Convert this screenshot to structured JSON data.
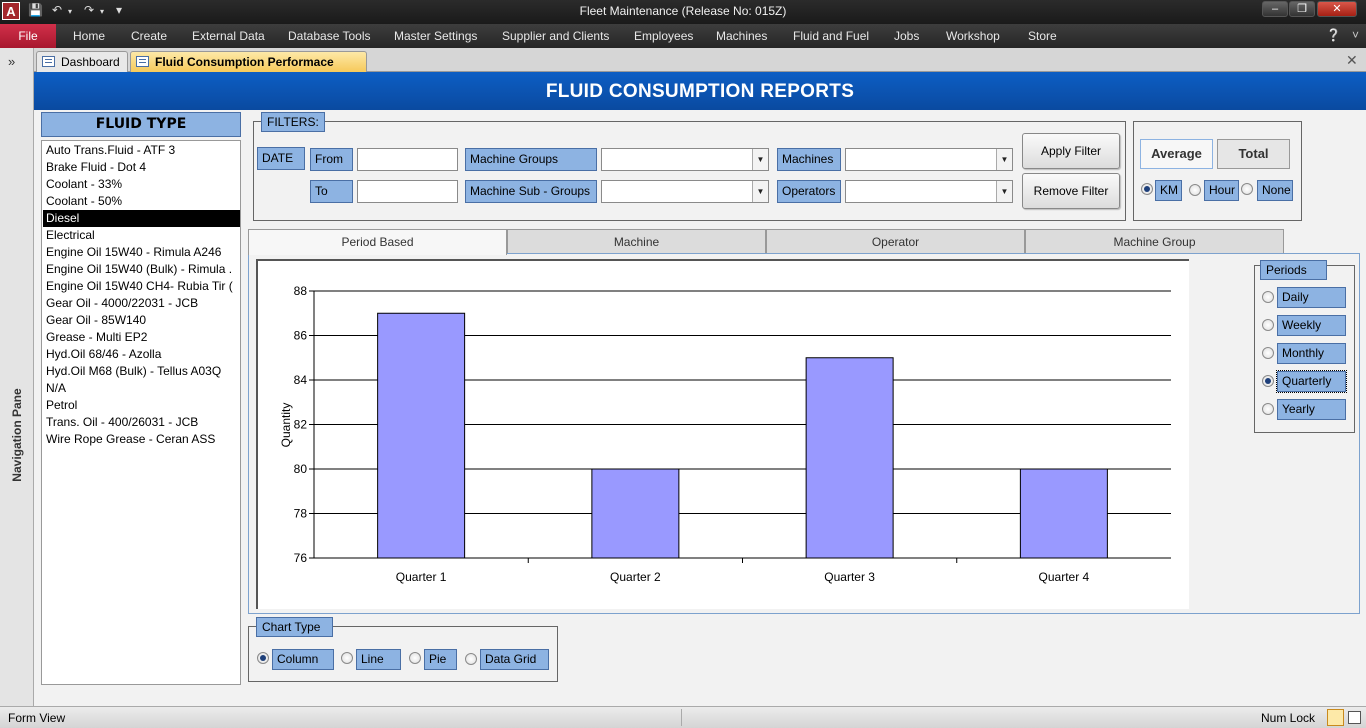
{
  "window": {
    "title": "Fleet Maintenance (Release No: 015Z)"
  },
  "ribbon": {
    "file": "File",
    "tabs": [
      "Home",
      "Create",
      "External Data",
      "Database Tools",
      "Master Settings",
      "Supplier and Clients",
      "Employees",
      "Machines",
      "Fluid and Fuel",
      "Jobs",
      "Workshop",
      "Store"
    ]
  },
  "doc_tabs": [
    "Dashboard",
    "Fluid Consumption Performace Report"
  ],
  "nav_pane": {
    "label": "Navigation Pane",
    "toggle": "»"
  },
  "header": {
    "title": "FLUID CONSUMPTION REPORTS"
  },
  "fluid_type": {
    "header": "FLUID TYPE",
    "selected_index": 4,
    "items": [
      "Auto Trans.Fluid - ATF 3",
      "Brake Fluid - Dot 4",
      "Coolant - 33%",
      "Coolant - 50%",
      "Diesel",
      "Electrical",
      "Engine Oil 15W40 - Rimula A246",
      "Engine Oil 15W40 (Bulk) - Rimula .",
      "Engine Oil 15W40 CH4- Rubia Tir (",
      "Gear Oil - 4000/22031 - JCB",
      "Gear Oil - 85W140",
      "Grease - Multi EP2",
      "Hyd.Oil 68/46 - Azolla",
      "Hyd.Oil M68 (Bulk) - Tellus A03Q",
      "N/A",
      "Petrol",
      "Trans. Oil - 400/26031 - JCB",
      "Wire Rope Grease - Ceran ASS"
    ]
  },
  "filters": {
    "label": "FILTERS:",
    "date": "DATE",
    "from": "From",
    "to": "To",
    "from_value": "",
    "to_value": "",
    "machine_groups": "Machine Groups",
    "machine_sub_groups": "Machine Sub - Groups",
    "machines": "Machines",
    "operators": "Operators",
    "machine_groups_value": "",
    "machine_sub_groups_value": "",
    "machines_value": "",
    "operators_value": "",
    "apply": "Apply Filter",
    "remove": "Remove Filter"
  },
  "aggregation": {
    "average": "Average",
    "total": "Total",
    "selected": "Average",
    "units": [
      "KM",
      "Hour",
      "None"
    ],
    "unit_selected": "KM"
  },
  "report_tabs": [
    "Period Based",
    "Machine",
    "Operator",
    "Machine Group"
  ],
  "active_report_tab": "Period Based",
  "periods": {
    "label": "Periods",
    "options": [
      "Daily",
      "Weekly",
      "Monthly",
      "Quarterly",
      "Yearly"
    ],
    "selected": "Quarterly"
  },
  "chart_type": {
    "label": "Chart Type",
    "options": [
      "Column",
      "Line",
      "Pie",
      "Data Grid"
    ],
    "selected": "Column"
  },
  "chart_data": {
    "type": "bar",
    "categories": [
      "Quarter 1",
      "Quarter 2",
      "Quarter 3",
      "Quarter 4"
    ],
    "values": [
      87,
      80,
      85,
      80
    ],
    "ylabel": "Quantity",
    "ylim": [
      76,
      88
    ],
    "yticks": [
      76,
      78,
      80,
      82,
      84,
      86,
      88
    ],
    "bar_color": "#9999ff",
    "grid": true
  },
  "status": {
    "left": "Form View",
    "right": "Num Lock"
  }
}
